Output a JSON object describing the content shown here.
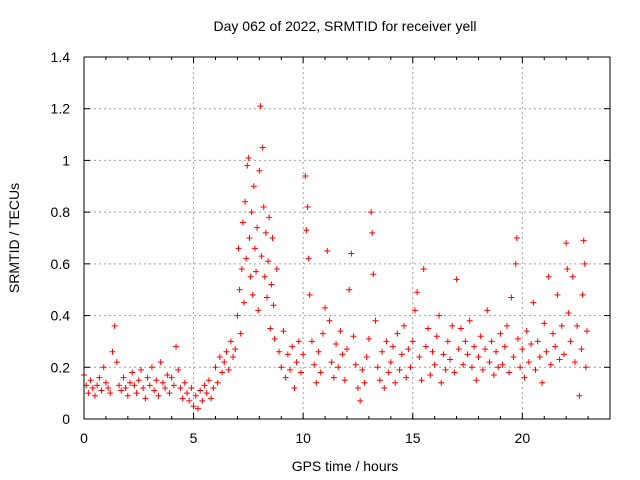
{
  "chart_data": {
    "type": "scatter",
    "title": "Day 062 of 2022, SRMTID for receiver yell",
    "xlabel": "GPS time / hours",
    "ylabel": "SRMTID / TECUs",
    "xlim": [
      0,
      24
    ],
    "ylim": [
      0,
      1.4
    ],
    "x_ticks": [
      0,
      5,
      10,
      15,
      20
    ],
    "x_tick_labels": [
      "0",
      "5",
      "10",
      "15",
      "20"
    ],
    "y_ticks": [
      0,
      0.2,
      0.4,
      0.6,
      0.8,
      1,
      1.2,
      1.4
    ],
    "y_tick_labels": [
      "0",
      "0.2",
      "0.4",
      "0.6",
      "0.8",
      "1",
      "1.2",
      "1.4"
    ],
    "grid": true,
    "marker": "+",
    "series": [
      {
        "name": "SRMTID",
        "color": "#ff0000",
        "points": [
          [
            0.0,
            0.17
          ],
          [
            0.1,
            0.13
          ],
          [
            0.2,
            0.1
          ],
          [
            0.3,
            0.15
          ],
          [
            0.4,
            0.12
          ],
          [
            0.5,
            0.09
          ],
          [
            0.6,
            0.13
          ],
          [
            0.7,
            0.16
          ],
          [
            0.8,
            0.11
          ],
          [
            0.9,
            0.2
          ],
          [
            1.0,
            0.14
          ],
          [
            1.1,
            0.12
          ],
          [
            1.2,
            0.1
          ],
          [
            1.3,
            0.26
          ],
          [
            1.4,
            0.36
          ],
          [
            1.5,
            0.22
          ],
          [
            1.6,
            0.13
          ],
          [
            1.7,
            0.11
          ],
          [
            1.8,
            0.16
          ],
          [
            1.9,
            0.12
          ],
          [
            2.0,
            0.09
          ],
          [
            2.1,
            0.14
          ],
          [
            2.2,
            0.18
          ],
          [
            2.3,
            0.13
          ],
          [
            2.4,
            0.1
          ],
          [
            2.5,
            0.15
          ],
          [
            2.6,
            0.19
          ],
          [
            2.7,
            0.12
          ],
          [
            2.8,
            0.08
          ],
          [
            2.9,
            0.16
          ],
          [
            3.0,
            0.13
          ],
          [
            3.1,
            0.2
          ],
          [
            3.2,
            0.11
          ],
          [
            3.3,
            0.15
          ],
          [
            3.4,
            0.09
          ],
          [
            3.5,
            0.22
          ],
          [
            3.6,
            0.14
          ],
          [
            3.7,
            0.12
          ],
          [
            3.8,
            0.17
          ],
          [
            3.9,
            0.1
          ],
          [
            4.0,
            0.16
          ],
          [
            4.1,
            0.13
          ],
          [
            4.2,
            0.28
          ],
          [
            4.3,
            0.19
          ],
          [
            4.4,
            0.12
          ],
          [
            4.5,
            0.08
          ],
          [
            4.6,
            0.14
          ],
          [
            4.7,
            0.1
          ],
          [
            4.8,
            0.07
          ],
          [
            4.9,
            0.12
          ],
          [
            5.0,
            0.05
          ],
          [
            5.1,
            0.09
          ],
          [
            5.2,
            0.04
          ],
          [
            5.3,
            0.11
          ],
          [
            5.4,
            0.07
          ],
          [
            5.5,
            0.13
          ],
          [
            5.6,
            0.1
          ],
          [
            5.7,
            0.15
          ],
          [
            5.8,
            0.08
          ],
          [
            5.9,
            0.12
          ],
          [
            6.0,
            0.2
          ],
          [
            6.1,
            0.14
          ],
          [
            6.2,
            0.24
          ],
          [
            6.3,
            0.18
          ],
          [
            6.4,
            0.22
          ],
          [
            6.5,
            0.26
          ],
          [
            6.6,
            0.19
          ],
          [
            6.7,
            0.3
          ],
          [
            6.8,
            0.24
          ],
          [
            6.9,
            0.27
          ],
          [
            7.0,
            0.4
          ],
          [
            7.05,
            0.66
          ],
          [
            7.1,
            0.5
          ],
          [
            7.15,
            0.33
          ],
          [
            7.2,
            0.58
          ],
          [
            7.25,
            0.76
          ],
          [
            7.3,
            0.45
          ],
          [
            7.35,
            0.84
          ],
          [
            7.4,
            0.62
          ],
          [
            7.45,
            0.98
          ],
          [
            7.5,
            1.01
          ],
          [
            7.55,
            0.7
          ],
          [
            7.6,
            0.55
          ],
          [
            7.65,
            0.8
          ],
          [
            7.7,
            0.48
          ],
          [
            7.75,
            0.9
          ],
          [
            7.8,
            0.66
          ],
          [
            7.85,
            0.57
          ],
          [
            7.9,
            0.74
          ],
          [
            7.95,
            0.42
          ],
          [
            8.0,
            0.96
          ],
          [
            8.05,
            1.21
          ],
          [
            8.1,
            0.63
          ],
          [
            8.15,
            1.05
          ],
          [
            8.2,
            0.82
          ],
          [
            8.25,
            0.55
          ],
          [
            8.3,
            0.72
          ],
          [
            8.35,
            0.47
          ],
          [
            8.4,
            0.61
          ],
          [
            8.45,
            0.78
          ],
          [
            8.5,
            0.35
          ],
          [
            8.55,
            0.52
          ],
          [
            8.6,
            0.7
          ],
          [
            8.65,
            0.44
          ],
          [
            8.7,
            0.31
          ],
          [
            8.8,
            0.58
          ],
          [
            8.9,
            0.26
          ],
          [
            9.0,
            0.2
          ],
          [
            9.1,
            0.34
          ],
          [
            9.2,
            0.16
          ],
          [
            9.3,
            0.25
          ],
          [
            9.4,
            0.19
          ],
          [
            9.5,
            0.28
          ],
          [
            9.6,
            0.12
          ],
          [
            9.7,
            0.22
          ],
          [
            9.8,
            0.3
          ],
          [
            9.9,
            0.18
          ],
          [
            10.0,
            0.25
          ],
          [
            10.1,
            0.94
          ],
          [
            10.15,
            0.73
          ],
          [
            10.2,
            0.82
          ],
          [
            10.25,
            0.62
          ],
          [
            10.3,
            0.48
          ],
          [
            10.4,
            0.3
          ],
          [
            10.5,
            0.21
          ],
          [
            10.6,
            0.14
          ],
          [
            10.7,
            0.26
          ],
          [
            10.8,
            0.18
          ],
          [
            10.9,
            0.33
          ],
          [
            11.0,
            0.43
          ],
          [
            11.1,
            0.65
          ],
          [
            11.2,
            0.38
          ],
          [
            11.3,
            0.22
          ],
          [
            11.4,
            0.16
          ],
          [
            11.5,
            0.29
          ],
          [
            11.6,
            0.2
          ],
          [
            11.7,
            0.34
          ],
          [
            11.8,
            0.25
          ],
          [
            11.9,
            0.15
          ],
          [
            12.0,
            0.27
          ],
          [
            12.1,
            0.5
          ],
          [
            12.2,
            0.64
          ],
          [
            12.3,
            0.32
          ],
          [
            12.4,
            0.21
          ],
          [
            12.5,
            0.12
          ],
          [
            12.6,
            0.07
          ],
          [
            12.7,
            0.19
          ],
          [
            12.8,
            0.14
          ],
          [
            12.9,
            0.24
          ],
          [
            13.0,
            0.31
          ],
          [
            13.1,
            0.8
          ],
          [
            13.15,
            0.72
          ],
          [
            13.2,
            0.56
          ],
          [
            13.3,
            0.38
          ],
          [
            13.4,
            0.2
          ],
          [
            13.5,
            0.15
          ],
          [
            13.6,
            0.26
          ],
          [
            13.7,
            0.12
          ],
          [
            13.8,
            0.3
          ],
          [
            13.9,
            0.18
          ],
          [
            14.0,
            0.22
          ],
          [
            14.1,
            0.28
          ],
          [
            14.2,
            0.14
          ],
          [
            14.3,
            0.33
          ],
          [
            14.4,
            0.19
          ],
          [
            14.5,
            0.25
          ],
          [
            14.6,
            0.36
          ],
          [
            14.7,
            0.16
          ],
          [
            14.8,
            0.27
          ],
          [
            14.9,
            0.2
          ],
          [
            15.0,
            0.3
          ],
          [
            15.1,
            0.42
          ],
          [
            15.2,
            0.49
          ],
          [
            15.3,
            0.24
          ],
          [
            15.4,
            0.15
          ],
          [
            15.5,
            0.58
          ],
          [
            15.6,
            0.28
          ],
          [
            15.7,
            0.35
          ],
          [
            15.8,
            0.17
          ],
          [
            15.9,
            0.26
          ],
          [
            16.0,
            0.21
          ],
          [
            16.1,
            0.32
          ],
          [
            16.2,
            0.4
          ],
          [
            16.3,
            0.14
          ],
          [
            16.4,
            0.25
          ],
          [
            16.5,
            0.19
          ],
          [
            16.6,
            0.3
          ],
          [
            16.7,
            0.23
          ],
          [
            16.8,
            0.36
          ],
          [
            16.9,
            0.18
          ],
          [
            17.0,
            0.54
          ],
          [
            17.1,
            0.27
          ],
          [
            17.2,
            0.35
          ],
          [
            17.3,
            0.21
          ],
          [
            17.4,
            0.3
          ],
          [
            17.5,
            0.25
          ],
          [
            17.6,
            0.38
          ],
          [
            17.7,
            0.2
          ],
          [
            17.8,
            0.28
          ],
          [
            17.9,
            0.15
          ],
          [
            18.0,
            0.24
          ],
          [
            18.1,
            0.32
          ],
          [
            18.2,
            0.19
          ],
          [
            18.3,
            0.27
          ],
          [
            18.4,
            0.42
          ],
          [
            18.5,
            0.22
          ],
          [
            18.6,
            0.3
          ],
          [
            18.7,
            0.17
          ],
          [
            18.8,
            0.26
          ],
          [
            18.9,
            0.2
          ],
          [
            19.0,
            0.33
          ],
          [
            19.1,
            0.21
          ],
          [
            19.2,
            0.28
          ],
          [
            19.3,
            0.36
          ],
          [
            19.4,
            0.18
          ],
          [
            19.5,
            0.47
          ],
          [
            19.6,
            0.24
          ],
          [
            19.7,
            0.6
          ],
          [
            19.75,
            0.7
          ],
          [
            19.8,
            0.31
          ],
          [
            19.9,
            0.2
          ],
          [
            20.0,
            0.27
          ],
          [
            20.1,
            0.16
          ],
          [
            20.2,
            0.34
          ],
          [
            20.3,
            0.22
          ],
          [
            20.4,
            0.29
          ],
          [
            20.5,
            0.45
          ],
          [
            20.6,
            0.19
          ],
          [
            20.7,
            0.3
          ],
          [
            20.8,
            0.24
          ],
          [
            20.9,
            0.14
          ],
          [
            21.0,
            0.37
          ],
          [
            21.1,
            0.26
          ],
          [
            21.2,
            0.55
          ],
          [
            21.3,
            0.21
          ],
          [
            21.4,
            0.33
          ],
          [
            21.5,
            0.28
          ],
          [
            21.6,
            0.48
          ],
          [
            21.7,
            0.23
          ],
          [
            21.8,
            0.36
          ],
          [
            21.9,
            0.25
          ],
          [
            22.0,
            0.68
          ],
          [
            22.05,
            0.58
          ],
          [
            22.1,
            0.41
          ],
          [
            22.2,
            0.3
          ],
          [
            22.3,
            0.55
          ],
          [
            22.4,
            0.22
          ],
          [
            22.5,
            0.36
          ],
          [
            22.6,
            0.09
          ],
          [
            22.7,
            0.27
          ],
          [
            22.75,
            0.48
          ],
          [
            22.8,
            0.69
          ],
          [
            22.85,
            0.6
          ],
          [
            22.9,
            0.2
          ],
          [
            22.95,
            0.34
          ]
        ]
      }
    ]
  }
}
